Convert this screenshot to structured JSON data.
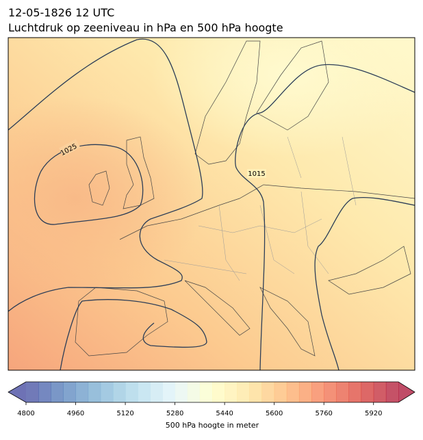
{
  "title": "12-05-1826 12 UTC",
  "subtitle": "Luchtdruk op zeeniveau in hPa en 500 hPa hoogte",
  "contour_labels": [
    "1025",
    "1015"
  ],
  "colorbar": {
    "label": "500 hPa hoogte in meter",
    "range": [
      4800,
      6000
    ],
    "ticks": [
      4800,
      4960,
      5120,
      5280,
      5440,
      5600,
      5760,
      5920
    ],
    "interval": 40,
    "extend": "both",
    "colormap": [
      "#313695",
      "#4575b4",
      "#74add1",
      "#abd9e9",
      "#e0f3f8",
      "#ffffbf",
      "#fee090",
      "#fdae61",
      "#f46d43",
      "#d73027",
      "#a50026"
    ]
  }
}
